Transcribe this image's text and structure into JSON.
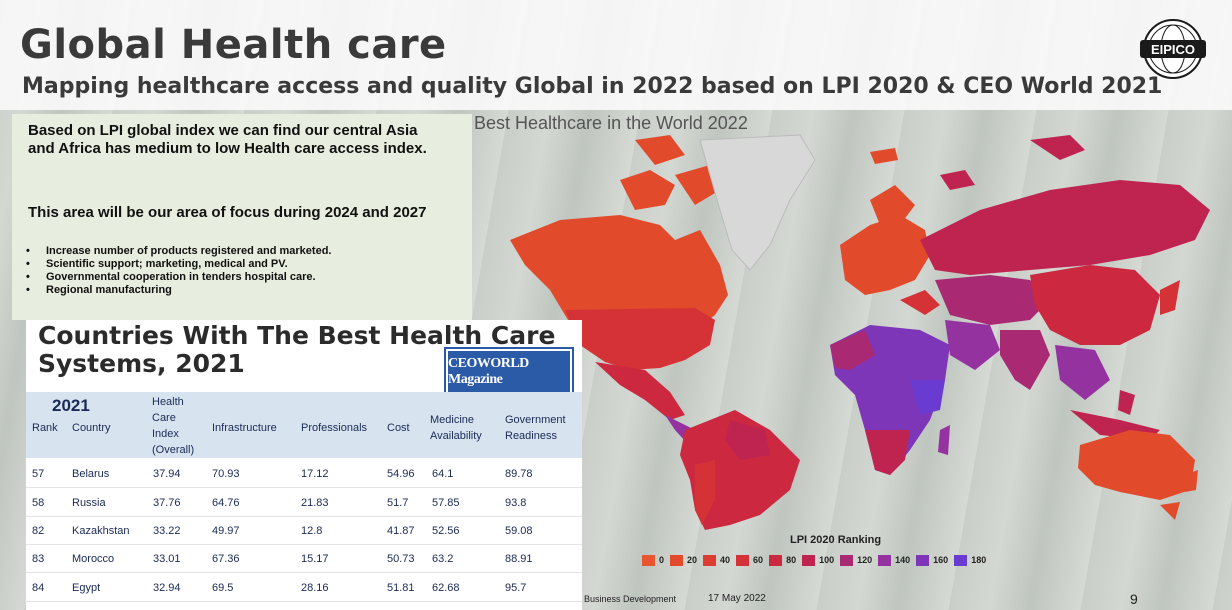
{
  "header": {
    "title": "Global Health care",
    "subtitle": "Mapping healthcare access and quality Global in 2022 based on LPI 2020 & CEO World 2021"
  },
  "logo": {
    "text": "EIPICO"
  },
  "left_panel": {
    "intro": "Based on LPI global index we can find our central Asia and Africa has medium to low Health care access index.",
    "focus": "This area will be our area of focus during 2024 and 2027",
    "bullets": [
      "Increase number of products registered and  marketed.",
      "Scientific support; marketing, medical and PV.",
      "Governmental cooperation in tenders hospital  care.",
      "Regional manufacturing"
    ]
  },
  "map": {
    "title": "Best Healthcare in the World 2022",
    "legend_title": "LPI 2020 Ranking",
    "legend": [
      {
        "label": "0",
        "color": "#e8552e"
      },
      {
        "label": "20",
        "color": "#e24a2c"
      },
      {
        "label": "40",
        "color": "#dc3d30"
      },
      {
        "label": "60",
        "color": "#d43236"
      },
      {
        "label": "80",
        "color": "#cc2840"
      },
      {
        "label": "100",
        "color": "#bf2450"
      },
      {
        "label": "120",
        "color": "#a92a72"
      },
      {
        "label": "140",
        "color": "#9432a0"
      },
      {
        "label": "160",
        "color": "#7e36b8"
      },
      {
        "label": "180",
        "color": "#6a3bd0"
      }
    ]
  },
  "table": {
    "title": "Countries With The Best Health Care Systems, 2021",
    "source_badge": "CEOWORLD Magazine",
    "year": "2021",
    "headers": {
      "rank": "Rank",
      "country": "Country",
      "index": "Health Care Index (Overall)",
      "infrastructure": "Infrastructure",
      "professionals": "Professionals",
      "cost": "Cost",
      "medicine": "Medicine Availability",
      "government": "Government Readiness"
    },
    "rows": [
      {
        "rank": "57",
        "country": "Belarus",
        "index": "37.94",
        "infrastructure": "70.93",
        "professionals": "17.12",
        "cost": "54.96",
        "medicine": "64.1",
        "government": "89.78"
      },
      {
        "rank": "58",
        "country": "Russia",
        "index": "37.76",
        "infrastructure": "64.76",
        "professionals": "21.83",
        "cost": "51.7",
        "medicine": "57.85",
        "government": "93.8"
      },
      {
        "rank": "82",
        "country": "Kazakhstan",
        "index": "33.22",
        "infrastructure": "49.97",
        "professionals": "12.8",
        "cost": "41.87",
        "medicine": "52.56",
        "government": "59.08"
      },
      {
        "rank": "83",
        "country": "Morocco",
        "index": "33.01",
        "infrastructure": "67.36",
        "professionals": "15.17",
        "cost": "50.73",
        "medicine": "63.2",
        "government": "88.91"
      },
      {
        "rank": "84",
        "country": "Egypt",
        "index": "32.94",
        "infrastructure": "69.5",
        "professionals": "28.16",
        "cost": "51.81",
        "medicine": "62.68",
        "government": "95.7"
      }
    ]
  },
  "footer": {
    "dept": "Business Development",
    "date": "17 May 2022",
    "page": "9"
  }
}
